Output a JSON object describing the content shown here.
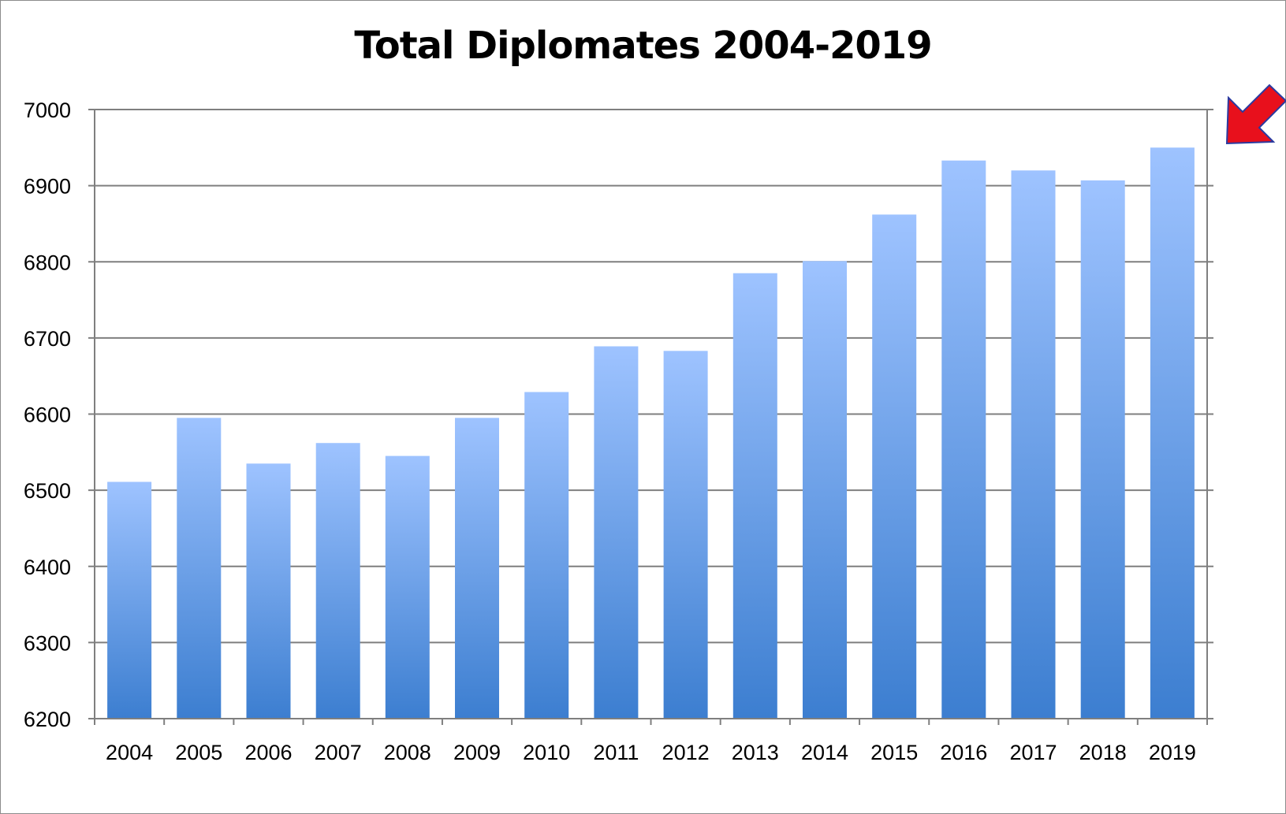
{
  "title": "Total Diplomates 2004-2019",
  "colors": {
    "bar_top": "#9ec3ff",
    "bar_bottom": "#3c7ed0",
    "grid": "#7f7f7f",
    "axis": "#7f7f7f",
    "arrow": "#e8101c",
    "arrow_outline": "#2a3aa0"
  },
  "annotation_icon": "red-arrow-icon",
  "chart_data": {
    "type": "bar",
    "title": "Total Diplomates 2004-2019",
    "xlabel": "",
    "ylabel": "",
    "categories": [
      "2004",
      "2005",
      "2006",
      "2007",
      "2008",
      "2009",
      "2010",
      "2011",
      "2012",
      "2013",
      "2014",
      "2015",
      "2016",
      "2017",
      "2018",
      "2019"
    ],
    "values": [
      6511,
      6595,
      6535,
      6562,
      6545,
      6595,
      6629,
      6689,
      6683,
      6785,
      6801,
      6862,
      6933,
      6920,
      6907,
      6950
    ],
    "ylim": [
      6200,
      7000
    ],
    "yticks": [
      6200,
      6300,
      6400,
      6500,
      6600,
      6700,
      6800,
      6900,
      7000
    ],
    "grid": true,
    "legend": "none"
  }
}
